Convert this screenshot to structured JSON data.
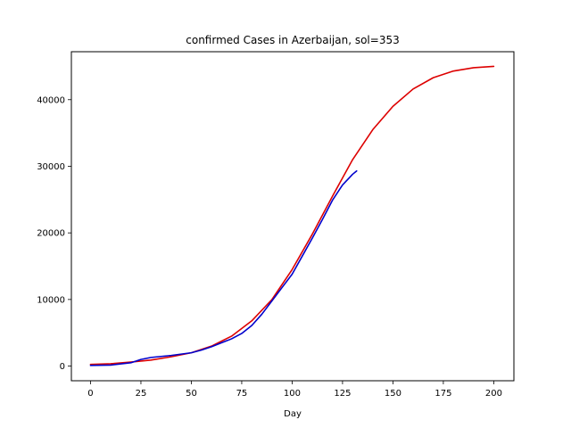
{
  "chart_data": {
    "type": "line",
    "title": "confirmed Cases in Azerbaijan, sol=353",
    "xlabel": "Day",
    "ylabel": "",
    "xlim": [
      -9.5,
      210
    ],
    "ylim": [
      -2200,
      47200
    ],
    "xticks": [
      0,
      25,
      50,
      75,
      100,
      125,
      150,
      175,
      200
    ],
    "yticks": [
      0,
      10000,
      20000,
      30000,
      40000
    ],
    "grid": false,
    "series": [
      {
        "color": "#dd0000",
        "x": [
          0,
          10,
          20,
          30,
          40,
          50,
          60,
          70,
          80,
          90,
          100,
          110,
          120,
          130,
          140,
          150,
          160,
          170,
          180,
          190,
          200
        ],
        "y": [
          250,
          350,
          600,
          900,
          1400,
          2000,
          3000,
          4500,
          6800,
          10000,
          14500,
          19800,
          25500,
          31000,
          35500,
          39000,
          41600,
          43300,
          44300,
          44800,
          45000
        ]
      },
      {
        "color": "#0000cc",
        "x": [
          0,
          10,
          20,
          25,
          30,
          40,
          50,
          55,
          60,
          65,
          70,
          75,
          80,
          85,
          90,
          95,
          100,
          105,
          110,
          115,
          120,
          125,
          130,
          132
        ],
        "y": [
          100,
          150,
          500,
          1000,
          1300,
          1600,
          2000,
          2400,
          2900,
          3500,
          4100,
          4900,
          6100,
          7800,
          9800,
          11800,
          13800,
          16500,
          19200,
          22000,
          24900,
          27200,
          28800,
          29300
        ]
      }
    ]
  }
}
